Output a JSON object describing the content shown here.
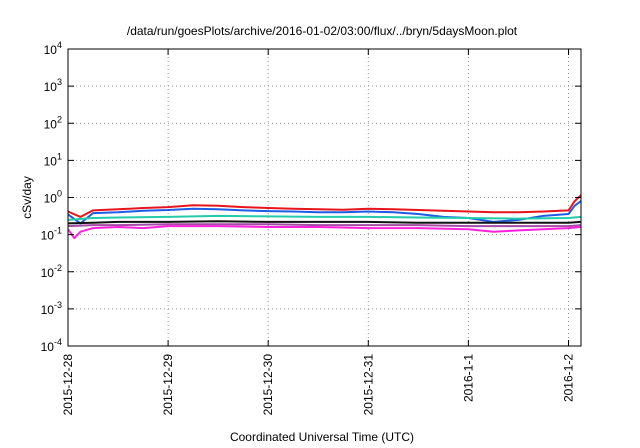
{
  "chart_data": {
    "type": "line",
    "title": "/data/run/goesPlots/archive/2016-01-02/03:00/flux/../bryn/5daysMoon.plot",
    "xlabel": "Coordinated Universal Time (UTC)",
    "ylabel": "cSv/day",
    "yscale": "log",
    "ylim": [
      0.0001,
      10000
    ],
    "xlim": [
      "2015-12-28T00:00",
      "2016-01-02T03:00"
    ],
    "grid": true,
    "legend": "none",
    "y_ticks": [
      {
        "value": 0.0001,
        "base": "10",
        "exp": "-4"
      },
      {
        "value": 0.001,
        "base": "10",
        "exp": "-3"
      },
      {
        "value": 0.01,
        "base": "10",
        "exp": "-2"
      },
      {
        "value": 0.1,
        "base": "10",
        "exp": "-1"
      },
      {
        "value": 1,
        "base": "10",
        "exp": "0"
      },
      {
        "value": 10,
        "base": "10",
        "exp": "1"
      },
      {
        "value": 100,
        "base": "10",
        "exp": "2"
      },
      {
        "value": 1000,
        "base": "10",
        "exp": "3"
      },
      {
        "value": 10000,
        "base": "10",
        "exp": "4"
      }
    ],
    "x_ticks": [
      {
        "value": "2015-12-28T00:00",
        "label": "2015-12-28"
      },
      {
        "value": "2015-12-29T00:00",
        "label": "2015-12-29"
      },
      {
        "value": "2015-12-30T00:00",
        "label": "2015-12-30"
      },
      {
        "value": "2015-12-31T00:00",
        "label": "2015-12-31"
      },
      {
        "value": "2016-01-01T00:00",
        "label": "2016-1-1"
      },
      {
        "value": "2016-01-02T00:00",
        "label": "2016-1-2"
      }
    ],
    "series": [
      {
        "color": "#e8141c",
        "x": [
          "2015-12-28T00:00",
          "2015-12-28T03:00",
          "2015-12-28T06:00",
          "2015-12-28T12:00",
          "2015-12-28T18:00",
          "2015-12-29T00:00",
          "2015-12-29T06:00",
          "2015-12-29T12:00",
          "2015-12-29T18:00",
          "2015-12-30T00:00",
          "2015-12-30T06:00",
          "2015-12-30T12:00",
          "2015-12-30T18:00",
          "2015-12-31T00:00",
          "2015-12-31T06:00",
          "2015-12-31T12:00",
          "2015-12-31T18:00",
          "2016-01-01T00:00",
          "2016-01-01T06:00",
          "2016-01-01T12:00",
          "2016-01-01T18:00",
          "2016-01-02T00:00",
          "2016-01-02T01:30",
          "2016-01-02T03:00"
        ],
        "y": [
          0.42,
          0.3,
          0.45,
          0.48,
          0.52,
          0.55,
          0.62,
          0.6,
          0.55,
          0.52,
          0.5,
          0.48,
          0.47,
          0.5,
          0.48,
          0.46,
          0.44,
          0.42,
          0.4,
          0.4,
          0.42,
          0.45,
          0.8,
          1.15
        ]
      },
      {
        "color": "#1e5ce6",
        "x": [
          "2015-12-28T00:00",
          "2015-12-28T03:00",
          "2015-12-28T06:00",
          "2015-12-28T12:00",
          "2015-12-28T18:00",
          "2015-12-29T00:00",
          "2015-12-29T06:00",
          "2015-12-29T12:00",
          "2015-12-29T18:00",
          "2015-12-30T00:00",
          "2015-12-30T06:00",
          "2015-12-30T12:00",
          "2015-12-30T18:00",
          "2015-12-31T00:00",
          "2015-12-31T06:00",
          "2015-12-31T12:00",
          "2015-12-31T18:00",
          "2016-01-01T00:00",
          "2016-01-01T06:00",
          "2016-01-01T12:00",
          "2016-01-01T18:00",
          "2016-01-02T00:00",
          "2016-01-02T01:30",
          "2016-01-02T03:00"
        ],
        "y": [
          0.35,
          0.2,
          0.38,
          0.4,
          0.44,
          0.46,
          0.5,
          0.48,
          0.45,
          0.43,
          0.42,
          0.4,
          0.4,
          0.42,
          0.4,
          0.36,
          0.3,
          0.28,
          0.22,
          0.25,
          0.32,
          0.36,
          0.6,
          0.8
        ]
      },
      {
        "color": "#22ccaa",
        "x": [
          "2015-12-28T00:00",
          "2015-12-28T06:00",
          "2015-12-28T12:00",
          "2015-12-29T00:00",
          "2015-12-29T12:00",
          "2015-12-30T00:00",
          "2015-12-30T12:00",
          "2015-12-31T00:00",
          "2015-12-31T12:00",
          "2016-01-01T00:00",
          "2016-01-01T12:00",
          "2016-01-02T00:00",
          "2016-01-02T03:00"
        ],
        "y": [
          0.25,
          0.28,
          0.29,
          0.3,
          0.32,
          0.31,
          0.3,
          0.3,
          0.29,
          0.28,
          0.27,
          0.28,
          0.3
        ]
      },
      {
        "color": "#111111",
        "x": [
          "2015-12-28T00:00",
          "2015-12-28T06:00",
          "2015-12-28T12:00",
          "2015-12-29T00:00",
          "2015-12-29T12:00",
          "2015-12-30T00:00",
          "2015-12-30T12:00",
          "2015-12-31T00:00",
          "2015-12-31T12:00",
          "2016-01-01T00:00",
          "2016-01-01T12:00",
          "2016-01-02T00:00",
          "2016-01-02T03:00"
        ],
        "y": [
          0.2,
          0.21,
          0.22,
          0.22,
          0.23,
          0.22,
          0.22,
          0.22,
          0.21,
          0.21,
          0.21,
          0.21,
          0.22
        ]
      },
      {
        "color": "#a64ca6",
        "x": [
          "2015-12-28T00:00",
          "2015-12-28T06:00",
          "2015-12-28T12:00",
          "2015-12-29T00:00",
          "2015-12-29T12:00",
          "2015-12-30T00:00",
          "2015-12-30T12:00",
          "2015-12-31T00:00",
          "2015-12-31T12:00",
          "2016-01-01T00:00",
          "2016-01-01T12:00",
          "2016-01-02T00:00",
          "2016-01-02T03:00"
        ],
        "y": [
          0.17,
          0.18,
          0.18,
          0.19,
          0.19,
          0.19,
          0.18,
          0.18,
          0.18,
          0.17,
          0.17,
          0.17,
          0.18
        ]
      },
      {
        "color": "#ff22dd",
        "x": [
          "2015-12-28T00:00",
          "2015-12-28T01:30",
          "2015-12-28T03:00",
          "2015-12-28T06:00",
          "2015-12-28T12:00",
          "2015-12-28T18:00",
          "2015-12-29T00:00",
          "2015-12-29T12:00",
          "2015-12-30T00:00",
          "2015-12-30T12:00",
          "2015-12-31T00:00",
          "2015-12-31T12:00",
          "2016-01-01T00:00",
          "2016-01-01T06:00",
          "2016-01-01T12:00",
          "2016-01-02T00:00",
          "2016-01-02T03:00"
        ],
        "y": [
          0.14,
          0.08,
          0.12,
          0.15,
          0.16,
          0.15,
          0.17,
          0.17,
          0.16,
          0.16,
          0.15,
          0.15,
          0.14,
          0.12,
          0.13,
          0.15,
          0.16
        ]
      }
    ]
  }
}
